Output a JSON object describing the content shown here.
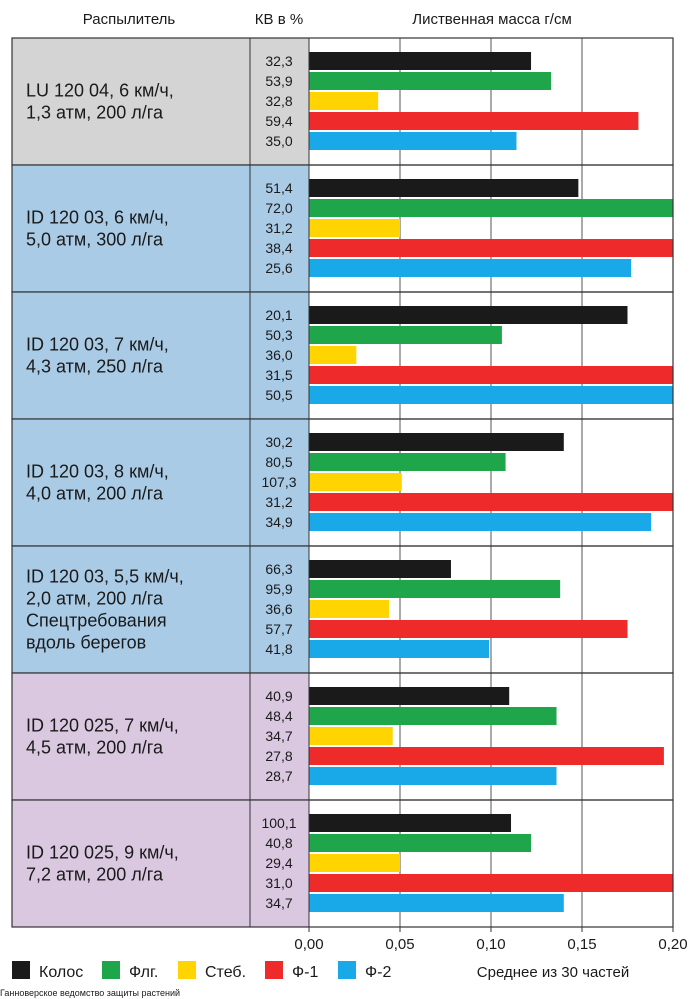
{
  "header": {
    "sprayer": "Распылитель",
    "kv": "КВ в %",
    "mass": "Лиственная масса г/см"
  },
  "chart_data": {
    "type": "bar",
    "orientation": "horizontal",
    "xlim": [
      0,
      0.2
    ],
    "x_ticks": [
      "0,00",
      "0,05",
      "0,10",
      "0,15",
      "0,20"
    ],
    "grid": true,
    "legend_position": "bottom-left",
    "series": [
      {
        "name": "Колос",
        "color": "#1a1a1a"
      },
      {
        "name": "Флг.",
        "color": "#1fa64a"
      },
      {
        "name": "Стеб.",
        "color": "#ffd400"
      },
      {
        "name": "Ф-1",
        "color": "#ee2a2a"
      },
      {
        "name": "Ф-2",
        "color": "#1aa9e8"
      }
    ],
    "groups": [
      {
        "label": [
          "LU 120 04, 6 км/ч,",
          "1,3 атм, 200 л/га"
        ],
        "bg": "#d4d4d4",
        "kv": [
          "32,3",
          "53,9",
          "32,8",
          "59,4",
          "35,0"
        ],
        "values": [
          0.122,
          0.133,
          0.038,
          0.181,
          0.114
        ]
      },
      {
        "label": [
          "ID 120 03, 6 км/ч,",
          "5,0 атм, 300 л/га"
        ],
        "bg": "#a9cbe6",
        "kv": [
          "51,4",
          "72,0",
          "31,2",
          "38,4",
          "25,6"
        ],
        "values": [
          0.148,
          0.2,
          0.05,
          0.2,
          0.177
        ]
      },
      {
        "label": [
          "ID 120 03, 7 км/ч,",
          "4,3 атм, 250 л/га"
        ],
        "bg": "#a9cbe6",
        "kv": [
          "20,1",
          "50,3",
          "36,0",
          "31,5",
          "50,5"
        ],
        "values": [
          0.175,
          0.106,
          0.026,
          0.2,
          0.2
        ]
      },
      {
        "label": [
          "ID 120 03, 8 км/ч,",
          "4,0 атм, 200 л/га"
        ],
        "bg": "#a9cbe6",
        "kv": [
          "30,2",
          "80,5",
          "107,3",
          "31,2",
          "34,9"
        ],
        "values": [
          0.14,
          0.108,
          0.051,
          0.2,
          0.188
        ]
      },
      {
        "label": [
          "ID 120 03, 5,5 км/ч,",
          "2,0 атм, 200 л/га",
          "Спецтребования",
          "вдоль берегов"
        ],
        "bg": "#a9cbe6",
        "kv": [
          "66,3",
          "95,9",
          "36,6",
          "57,7",
          "41,8"
        ],
        "values": [
          0.078,
          0.138,
          0.044,
          0.175,
          0.099
        ]
      },
      {
        "label": [
          "ID 120 025, 7 км/ч,",
          "4,5 атм, 200 л/га"
        ],
        "bg": "#d9c8e0",
        "kv": [
          "40,9",
          "48,4",
          "34,7",
          "27,8",
          "28,7"
        ],
        "values": [
          0.11,
          0.136,
          0.046,
          0.195,
          0.136
        ]
      },
      {
        "label": [
          "ID 120 025, 9 км/ч,",
          "7,2 атм, 200 л/га"
        ],
        "bg": "#d9c8e0",
        "kv": [
          "100,1",
          "40,8",
          "29,4",
          "31,0",
          "34,7"
        ],
        "values": [
          0.111,
          0.122,
          0.05,
          0.2,
          0.14
        ]
      }
    ]
  },
  "footer": {
    "note": "Среднее из 30 частей",
    "source": "Ганноверское ведомство защиты растений"
  }
}
